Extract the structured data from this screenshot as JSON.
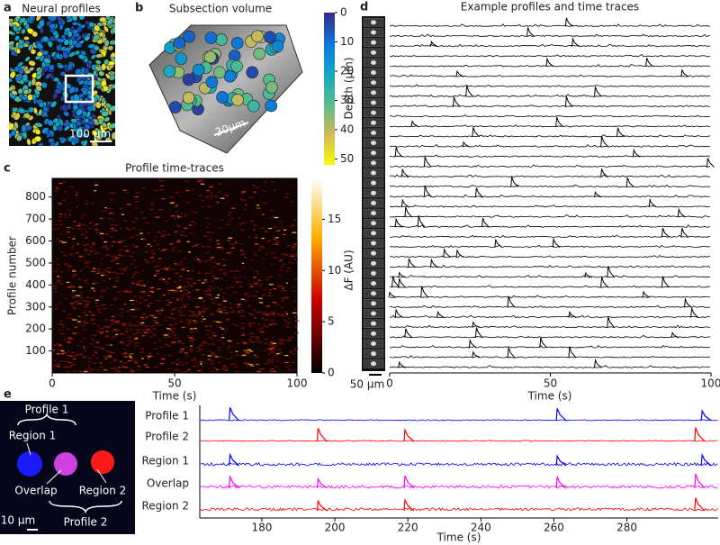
{
  "panel_a": {
    "letter": "a",
    "title": "Neural profiles",
    "scale_bar": "100 μm"
  },
  "panel_b": {
    "letter": "b",
    "title": "Subsection volume",
    "scale_bar": "30μm",
    "colorbar": {
      "label": "Depth (μm)",
      "lim": [
        0,
        52
      ],
      "ticks": [
        0,
        10,
        20,
        30,
        40,
        50
      ]
    }
  },
  "panel_c": {
    "letter": "c",
    "title": "Profile time-traces",
    "x_label": "Time (s)",
    "y_label": "Profile number",
    "xlim": [
      0,
      100
    ],
    "xticks": [
      0,
      50,
      100
    ],
    "ylim": [
      0,
      885
    ],
    "yticks": [
      100,
      200,
      300,
      400,
      500,
      600,
      700,
      800
    ],
    "colorbar": {
      "label": "ΔF (AU)",
      "lim": [
        0,
        19
      ],
      "ticks": [
        0,
        5,
        10,
        15
      ]
    }
  },
  "panel_d": {
    "letter": "d",
    "title": "Example profiles and time traces",
    "x_label": "Time (s)",
    "scale_bar": "50 μm",
    "xlim": [
      0,
      100
    ],
    "xticks": [
      0,
      50,
      100
    ],
    "peaks": [
      [
        55
      ],
      [
        43
      ],
      [
        13,
        57
      ],
      [],
      [
        49,
        80
      ],
      [
        21,
        91
      ],
      [],
      [
        24,
        64
      ],
      [
        20,
        55
      ],
      [],
      [
        7,
        52
      ],
      [
        26,
        71
      ],
      [
        23,
        66
      ],
      [
        2,
        76
      ],
      [
        11,
        99
      ],
      [
        4,
        66
      ],
      [
        38,
        74
      ],
      [
        11,
        27,
        64
      ],
      [
        4,
        81
      ],
      [
        5,
        90
      ],
      [
        2,
        9,
        29
      ],
      [
        85,
        91
      ],
      [
        33,
        51
      ],
      [
        17,
        21
      ],
      [
        6,
        13
      ],
      [
        3,
        61,
        68
      ],
      [
        1,
        3,
        66,
        85
      ],
      [
        0,
        10,
        79
      ],
      [
        37,
        92
      ],
      [
        2,
        15,
        56,
        94
      ],
      [
        26,
        68
      ],
      [
        5,
        27,
        88
      ],
      [
        25,
        47
      ],
      [
        26,
        37,
        56
      ],
      [
        3,
        64
      ]
    ]
  },
  "panel_e": {
    "letter": "e",
    "scale_bar": "10 μm",
    "x_label": "Time (s)",
    "image_labels": {
      "profile_1": "Profile 1",
      "region_1": "Region 1",
      "overlap": "Overlap",
      "region_2": "Region 2",
      "profile_2": "Profile 2"
    },
    "xlim": [
      163,
      305
    ],
    "xticks": [
      180,
      200,
      220,
      240,
      260,
      280
    ],
    "traces": [
      {
        "name": "Profile 1",
        "color": "#0000ff",
        "peaks": [
          171.3,
          260.9,
          300.6
        ]
      },
      {
        "name": "Profile 2",
        "color": "#ff0000",
        "peaks": [
          195.4,
          219.2,
          298.8
        ]
      },
      {
        "name": "Region 1",
        "color": "#0000ff",
        "peaks": [
          171.3,
          260.9,
          300.6
        ]
      },
      {
        "name": "Overlap",
        "color": "#ff00ff",
        "peaks": [
          171.3,
          195.4,
          219.2,
          260.9,
          298.8
        ]
      },
      {
        "name": "Region 2",
        "color": "#ff0000",
        "peaks": [
          195.4,
          219.2,
          298.8
        ]
      }
    ]
  }
}
